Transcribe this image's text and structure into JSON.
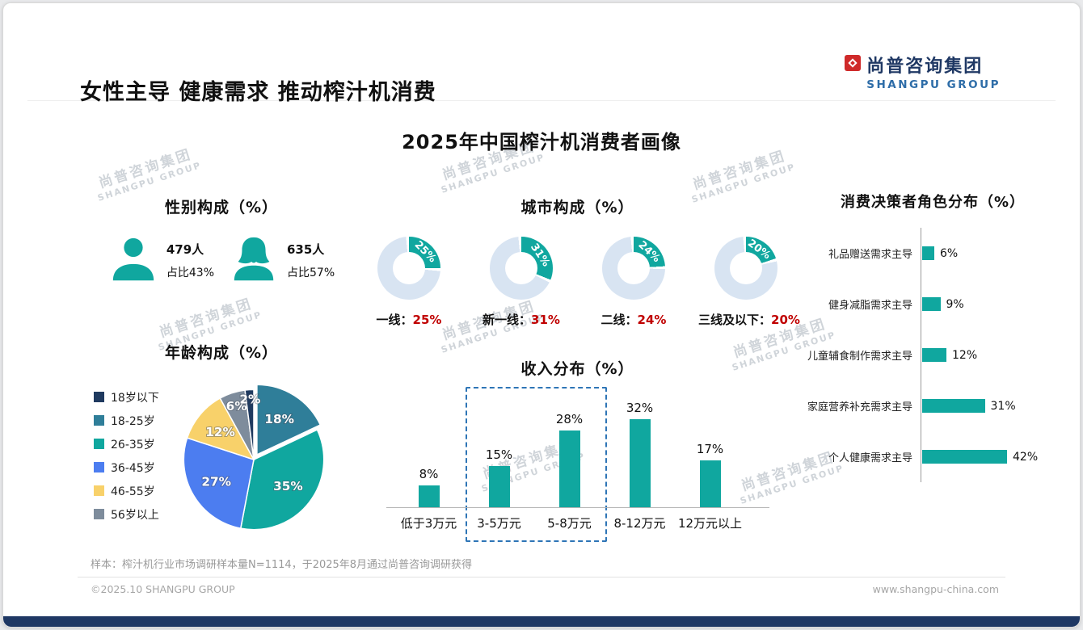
{
  "header": {
    "title": "女性主导 健康需求 推动榨汁机消费",
    "logo": {
      "cn": "尚普咨询集团",
      "en": "SHANGPU GROUP"
    }
  },
  "main_title": "2025年中国榨汁机消费者画像",
  "watermark": {
    "cn": "尚普咨询集团",
    "en": "SHANGPU GROUP"
  },
  "colors": {
    "teal": "#10A79F",
    "donut_rest": "#D8E4F2",
    "red": "#C00000",
    "navy": "#1F3864",
    "logo_blue": "#2E6DA8"
  },
  "gender": {
    "title": "性别构成（%）",
    "male": {
      "count": "479人",
      "share": "占比43%"
    },
    "female": {
      "count": "635人",
      "share": "占比57%"
    }
  },
  "city": {
    "title": "城市构成（%）",
    "donuts": [
      {
        "name": "一线：",
        "value": 25,
        "pct": "25%"
      },
      {
        "name": "新一线：",
        "value": 31,
        "pct": "31%"
      },
      {
        "name": "二线：",
        "value": 24,
        "pct": "24%"
      },
      {
        "name": "三线及以下：",
        "value": 20,
        "pct": "20%"
      }
    ]
  },
  "decision": {
    "title": "消费决策者角色分布（%）",
    "bars": [
      {
        "label": "礼品赠送需求主导",
        "value": 6,
        "pct": "6%"
      },
      {
        "label": "健身减脂需求主导",
        "value": 9,
        "pct": "9%"
      },
      {
        "label": "儿童辅食制作需求主导",
        "value": 12,
        "pct": "12%"
      },
      {
        "label": "家庭营养补充需求主导",
        "value": 31,
        "pct": "31%"
      },
      {
        "label": "个人健康需求主导",
        "value": 42,
        "pct": "42%"
      }
    ]
  },
  "age": {
    "title": "年龄构成（%）",
    "legend": [
      {
        "label": "18岁以下",
        "color": "#1F3A5F"
      },
      {
        "label": "18-25岁",
        "color": "#2F7E99"
      },
      {
        "label": "26-35岁",
        "color": "#10A79F"
      },
      {
        "label": "36-45岁",
        "color": "#4C7DF0"
      },
      {
        "label": "46-55岁",
        "color": "#F8D16A"
      },
      {
        "label": "56岁以上",
        "color": "#7E8C9C"
      }
    ],
    "slices": [
      {
        "label": "18-25岁",
        "value": 18,
        "pct": "18%",
        "color": "#2F7E99"
      },
      {
        "label": "26-35岁",
        "value": 35,
        "pct": "35%",
        "color": "#10A79F"
      },
      {
        "label": "36-45岁",
        "value": 27,
        "pct": "27%",
        "color": "#4C7DF0"
      },
      {
        "label": "46-55岁",
        "value": 12,
        "pct": "12%",
        "color": "#F8D16A"
      },
      {
        "label": "56岁以上",
        "value": 6,
        "pct": "6%",
        "color": "#7E8C9C"
      },
      {
        "label": "18岁以下",
        "value": 2,
        "pct": "2%",
        "color": "#1F3A5F"
      }
    ]
  },
  "income": {
    "title": "收入分布（%）",
    "bars": [
      {
        "label": "低于3万元",
        "value": 8,
        "pct": "8%"
      },
      {
        "label": "3-5万元",
        "value": 15,
        "pct": "15%"
      },
      {
        "label": "5-8万元",
        "value": 28,
        "pct": "28%"
      },
      {
        "label": "8-12万元",
        "value": 32,
        "pct": "32%"
      },
      {
        "label": "12万元以上",
        "value": 17,
        "pct": "17%"
      }
    ],
    "highlight": [
      "3-5万元",
      "5-8万元"
    ]
  },
  "footnote": "样本：榨汁机行业市场调研样本量N=1114，于2025年8月通过尚普咨询调研获得",
  "footer": {
    "left": "©2025.10 SHANGPU GROUP",
    "right": "www.shangpu-china.com"
  },
  "chart_data": [
    {
      "type": "pictogram",
      "title": "性别构成（%）",
      "categories": [
        "男性",
        "女性"
      ],
      "values": [
        43,
        57
      ],
      "counts": [
        479,
        635
      ]
    },
    {
      "type": "pie",
      "variant": "donut_set",
      "title": "城市构成（%）",
      "categories": [
        "一线",
        "新一线",
        "二线",
        "三线及以下"
      ],
      "values": [
        25,
        31,
        24,
        20
      ]
    },
    {
      "type": "bar",
      "orientation": "horizontal",
      "title": "消费决策者角色分布（%）",
      "categories": [
        "礼品赠送需求主导",
        "健身减脂需求主导",
        "儿童辅食制作需求主导",
        "家庭营养补充需求主导",
        "个人健康需求主导"
      ],
      "values": [
        6,
        9,
        12,
        31,
        42
      ]
    },
    {
      "type": "pie",
      "title": "年龄构成（%）",
      "categories": [
        "18-25岁",
        "26-35岁",
        "36-45岁",
        "46-55岁",
        "56岁以上",
        "18岁以下"
      ],
      "values": [
        18,
        35,
        27,
        12,
        6,
        2
      ]
    },
    {
      "type": "bar",
      "title": "收入分布（%）",
      "categories": [
        "低于3万元",
        "3-5万元",
        "5-8万元",
        "8-12万元",
        "12万元以上"
      ],
      "values": [
        8,
        15,
        28,
        32,
        17
      ],
      "highlighted": [
        "3-5万元",
        "5-8万元"
      ]
    }
  ]
}
